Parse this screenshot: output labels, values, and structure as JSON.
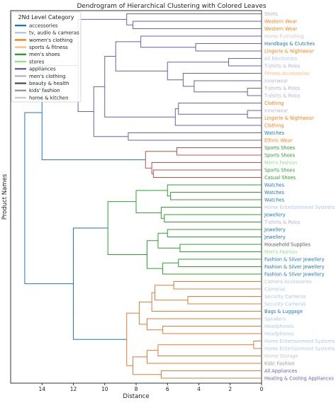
{
  "chart_data": {
    "type": "dendrogram",
    "title": "Dendrogram of Hierarchical Clustering with Colored Leaves",
    "xlabel": "Distance",
    "ylabel": "Product Names",
    "xlim": [
      16,
      0
    ],
    "xticks": [
      14,
      12,
      10,
      8,
      6,
      4,
      2,
      0
    ],
    "legend": {
      "title": "2Nd Level Category",
      "position": "top-left",
      "entries": [
        {
          "name": "accessories",
          "color": "#1f77b4"
        },
        {
          "name": "tv, audio & cameras",
          "color": "#aec7e8"
        },
        {
          "name": "women's clothing",
          "color": "#ff7f0e"
        },
        {
          "name": "sports & fitness",
          "color": "#ffbb78"
        },
        {
          "name": "men's shoes",
          "color": "#2ca02c"
        },
        {
          "name": "stores",
          "color": "#98df8a"
        },
        {
          "name": "appliances",
          "color": "#6b5fb0"
        },
        {
          "name": "men's clothing",
          "color": "#b5b0d8"
        },
        {
          "name": "beauty & health",
          "color": "#555555"
        },
        {
          "name": "kids' fashion",
          "color": "#999999"
        },
        {
          "name": "home & kitchen",
          "color": "#c7c7c7"
        }
      ]
    },
    "leaves": [
      {
        "label": "Shirts",
        "color": "#b5b0d8"
      },
      {
        "label": "Western Wear",
        "color": "#ff7f0e"
      },
      {
        "label": "Western Wear",
        "color": "#ff7f0e"
      },
      {
        "label": "Home Furnishing",
        "color": "#c7c7c7"
      },
      {
        "label": "Handbags & Clutches",
        "color": "#1f77b4"
      },
      {
        "label": "Lingerie & Nightwear",
        "color": "#ff7f0e"
      },
      {
        "label": "All Electronics",
        "color": "#aec7e8"
      },
      {
        "label": "T-shirts & Polos",
        "color": "#b5b0d8"
      },
      {
        "label": "Fitness Accessories",
        "color": "#ffbb78"
      },
      {
        "label": "Innerwear",
        "color": "#b5b0d8"
      },
      {
        "label": "T-shirts & Polos",
        "color": "#b5b0d8"
      },
      {
        "label": "T-shirts & Polos",
        "color": "#b5b0d8"
      },
      {
        "label": "Clothing",
        "color": "#ff7f0e"
      },
      {
        "label": "Innerwear",
        "color": "#b5b0d8"
      },
      {
        "label": "Lingerie & Nightwear",
        "color": "#ff7f0e"
      },
      {
        "label": "Clothing",
        "color": "#ff7f0e"
      },
      {
        "label": "Watches",
        "color": "#1f77b4"
      },
      {
        "label": "Ethnic Wear",
        "color": "#ff7f0e"
      },
      {
        "label": "Sports Shoes",
        "color": "#2ca02c"
      },
      {
        "label": "Sports Shoes",
        "color": "#2ca02c"
      },
      {
        "label": "Men's Fashion",
        "color": "#98df8a"
      },
      {
        "label": "Sports Shoes",
        "color": "#2ca02c"
      },
      {
        "label": "Casual Shoes",
        "color": "#2ca02c"
      },
      {
        "label": "Watches",
        "color": "#1f77b4"
      },
      {
        "label": "Watches",
        "color": "#1f77b4"
      },
      {
        "label": "Watches",
        "color": "#1f77b4"
      },
      {
        "label": "Home Entertainment Systems",
        "color": "#aec7e8"
      },
      {
        "label": "Jewellery",
        "color": "#1f77b4"
      },
      {
        "label": "T-shirts & Polos",
        "color": "#b5b0d8"
      },
      {
        "label": "Jewellery",
        "color": "#1f77b4"
      },
      {
        "label": "Jewellery",
        "color": "#1f77b4"
      },
      {
        "label": "Household Supplies",
        "color": "#555555"
      },
      {
        "label": "Men's Fashion",
        "color": "#98df8a"
      },
      {
        "label": "Fashion & Silver Jewellery",
        "color": "#1f77b4"
      },
      {
        "label": "Fashion & Silver Jewellery",
        "color": "#1f77b4"
      },
      {
        "label": "Fashion & Silver Jewellery",
        "color": "#1f77b4"
      },
      {
        "label": "Camera Accessories",
        "color": "#aec7e8"
      },
      {
        "label": "Cameras",
        "color": "#aec7e8"
      },
      {
        "label": "Security Cameras",
        "color": "#aec7e8"
      },
      {
        "label": "Security Cameras",
        "color": "#aec7e8"
      },
      {
        "label": "Bags & Luggage",
        "color": "#1f77b4"
      },
      {
        "label": "Speakers",
        "color": "#aec7e8"
      },
      {
        "label": "Headphones",
        "color": "#aec7e8"
      },
      {
        "label": "Headphones",
        "color": "#aec7e8"
      },
      {
        "label": "Home Entertainment Systems",
        "color": "#aec7e8"
      },
      {
        "label": "Home Entertainment Systems",
        "color": "#aec7e8"
      },
      {
        "label": "Home Storage",
        "color": "#c7c7c7"
      },
      {
        "label": "Kids' Fashion",
        "color": "#999999"
      },
      {
        "label": "All Appliances",
        "color": "#6b5fb0"
      },
      {
        "label": "Heating & Cooling Appliances",
        "color": "#6b5fb0"
      }
    ],
    "merges": [
      [
        1,
        2,
        8.2,
        "#6b5fb0"
      ],
      [
        0,
        50,
        8.6,
        "#6b5fb0"
      ],
      [
        4,
        5,
        4.2,
        "#6b5fb0"
      ],
      [
        3,
        52,
        7.7,
        "#6b5fb0"
      ],
      [
        6,
        7,
        2.1,
        "#6b5fb0"
      ],
      [
        10,
        11,
        0.9,
        "#6b5fb0"
      ],
      [
        9,
        55,
        4.3,
        "#6b5fb0"
      ],
      [
        8,
        56,
        5.0,
        "#6b5fb0"
      ],
      [
        54,
        57,
        6.0,
        "#6b5fb0"
      ],
      [
        53,
        58,
        9.3,
        "#6b5fb0"
      ],
      [
        13,
        14,
        0.9,
        "#6b5fb0"
      ],
      [
        12,
        60,
        5.3,
        "#6b5fb0"
      ],
      [
        15,
        61,
        5.5,
        "#6b5fb0"
      ],
      [
        59,
        62,
        10.0,
        "#6b5fb0"
      ],
      [
        16,
        17,
        8.5,
        "#6b5fb0"
      ],
      [
        63,
        64,
        10.7,
        "#6b5fb0"
      ],
      [
        51,
        65,
        11.7,
        "#6b5fb0"
      ],
      [
        18,
        19,
        5.4,
        "#c0504d"
      ],
      [
        21,
        22,
        6.9,
        "#c0504d"
      ],
      [
        20,
        68,
        7.0,
        "#c0504d"
      ],
      [
        67,
        69,
        7.4,
        "#c0504d"
      ],
      [
        66,
        70,
        14.0,
        "#1f77b4"
      ],
      [
        24,
        25,
        5.8,
        "#2ca02c"
      ],
      [
        23,
        72,
        6.0,
        "#2ca02c"
      ],
      [
        27,
        28,
        6.2,
        "#2ca02c"
      ],
      [
        26,
        74,
        6.4,
        "#2ca02c"
      ],
      [
        73,
        75,
        8.0,
        "#2ca02c"
      ],
      [
        29,
        30,
        6.0,
        "#2ca02c"
      ],
      [
        31,
        32,
        5.2,
        "#2ca02c"
      ],
      [
        77,
        78,
        6.6,
        "#2ca02c"
      ],
      [
        33,
        34,
        5.3,
        "#2ca02c"
      ],
      [
        35,
        80,
        6.3,
        "#2ca02c"
      ],
      [
        79,
        81,
        7.3,
        "#2ca02c"
      ],
      [
        76,
        82,
        9.8,
        "#2ca02c"
      ],
      [
        36,
        37,
        5.6,
        "#e07b39"
      ],
      [
        38,
        39,
        4.7,
        "#e07b39"
      ],
      [
        84,
        85,
        6.8,
        "#e07b39"
      ],
      [
        40,
        86,
        7.0,
        "#e07b39"
      ],
      [
        42,
        43,
        6.3,
        "#e07b39"
      ],
      [
        41,
        88,
        7.3,
        "#e07b39"
      ],
      [
        87,
        89,
        7.8,
        "#e07b39"
      ],
      [
        44,
        45,
        0.5,
        "#e07b39"
      ],
      [
        46,
        91,
        6.6,
        "#e07b39"
      ],
      [
        47,
        92,
        7.3,
        "#e07b39"
      ],
      [
        48,
        49,
        6.4,
        "#e07b39"
      ],
      [
        93,
        94,
        8.2,
        "#e07b39"
      ],
      [
        90,
        95,
        8.6,
        "#e07b39"
      ],
      [
        83,
        96,
        12.0,
        "#1f77b4"
      ],
      [
        71,
        97,
        15.1,
        "#1f77b4"
      ]
    ]
  }
}
